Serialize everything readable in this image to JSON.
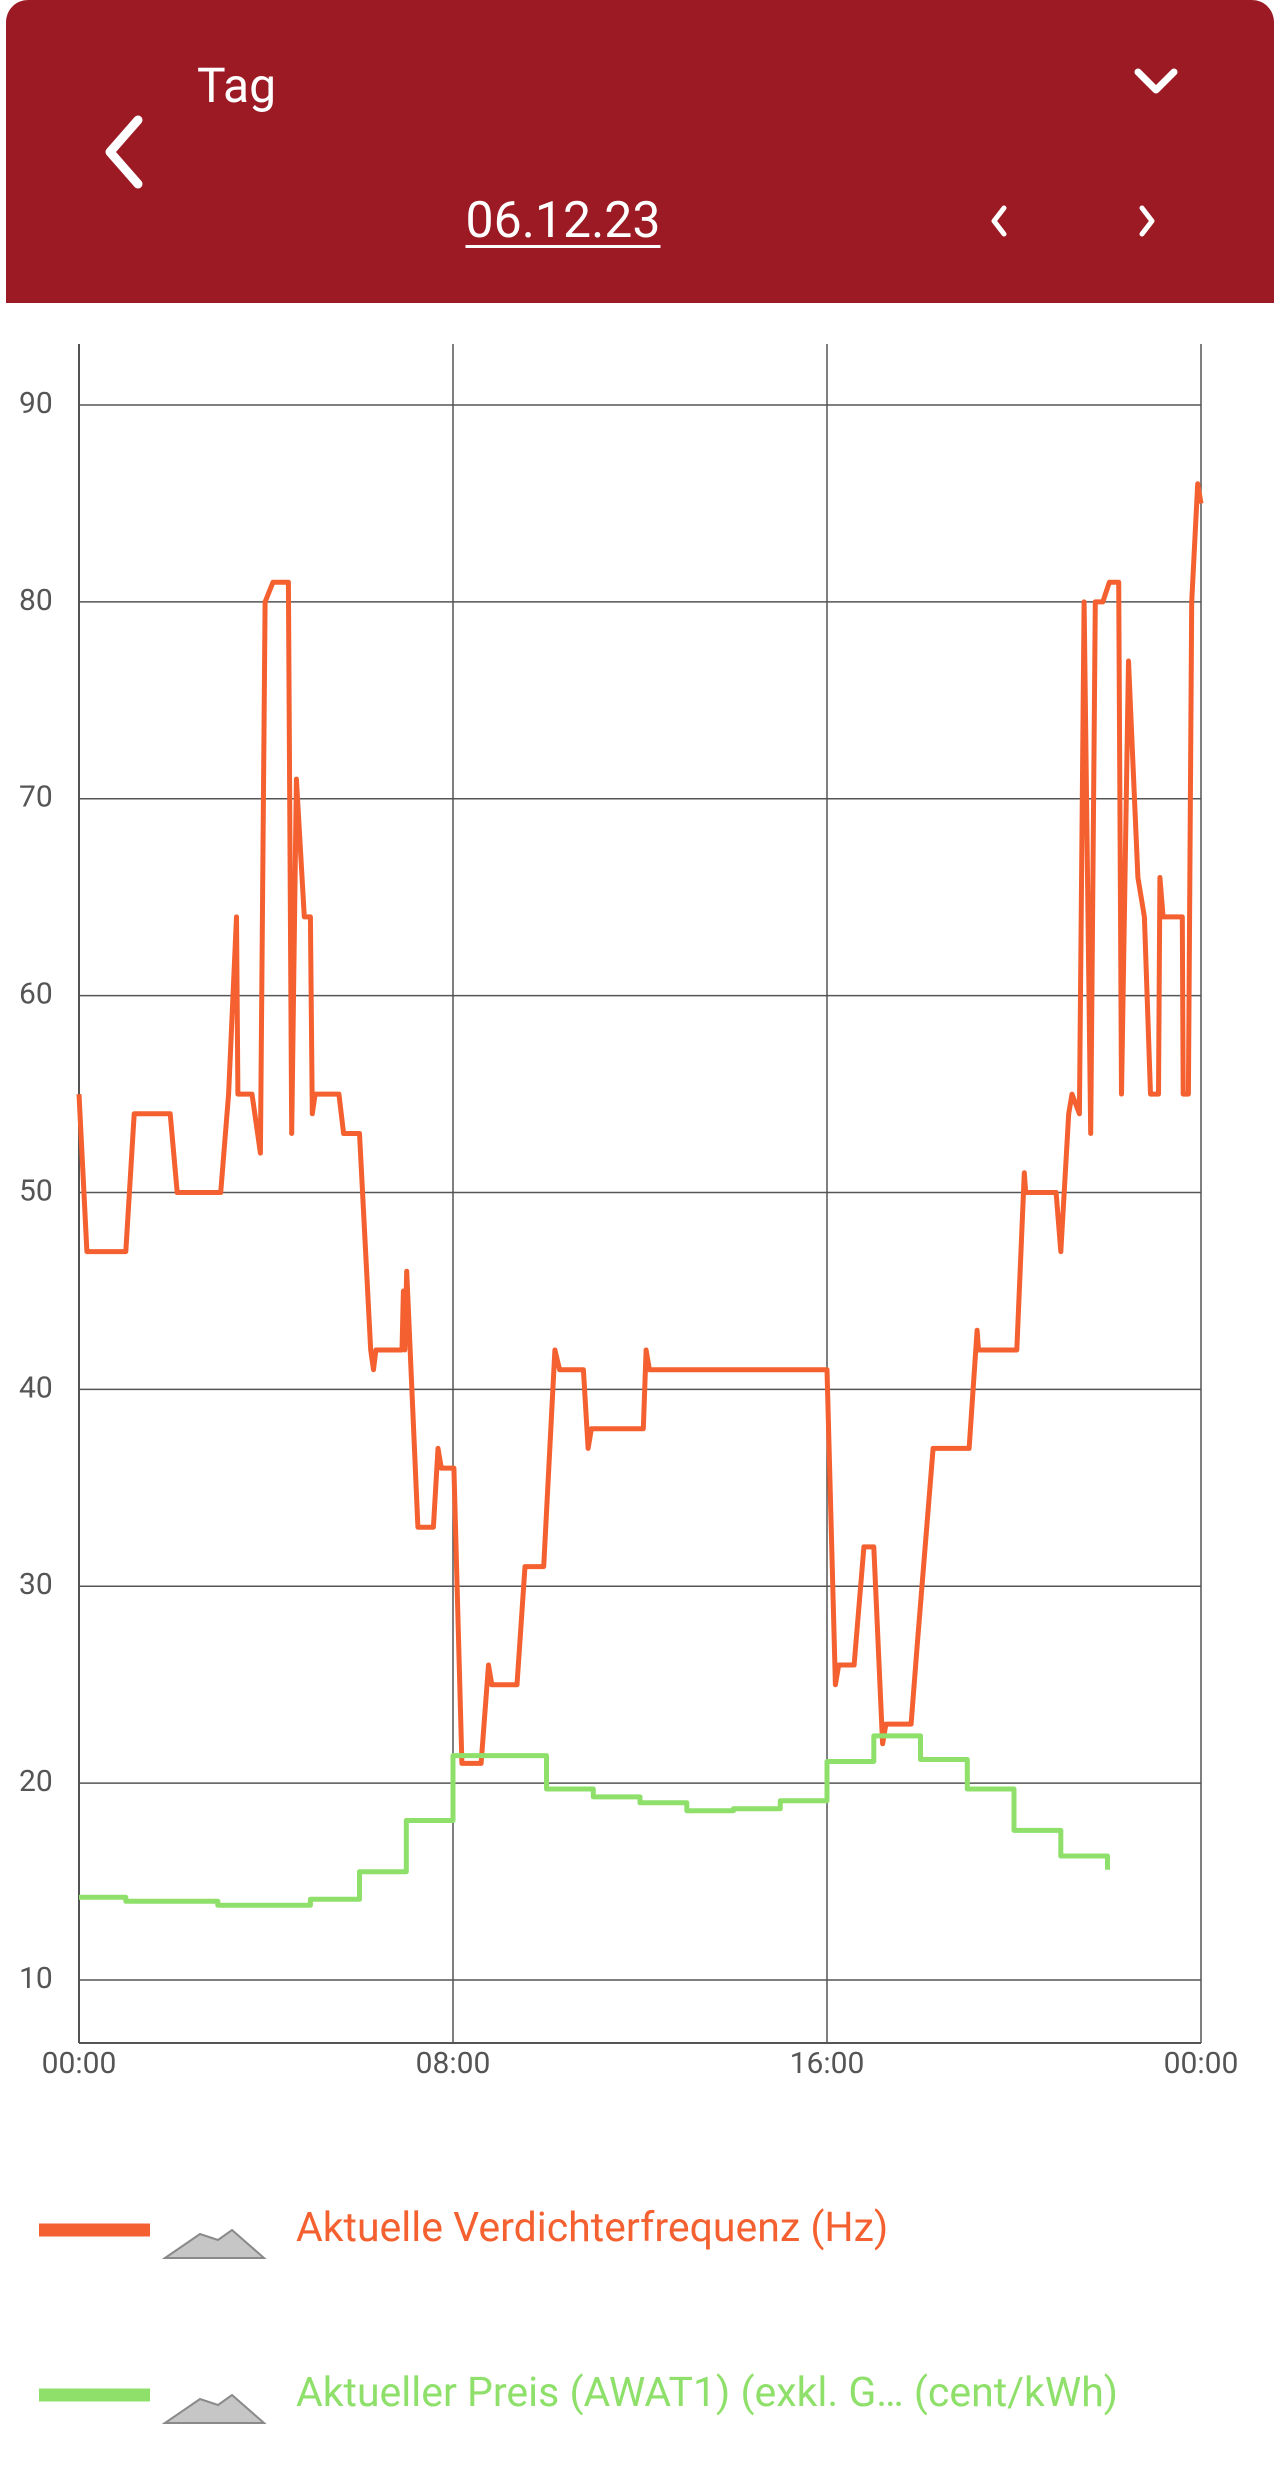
{
  "header": {
    "period": "Tag",
    "date": "06.12.23"
  },
  "chart_data": {
    "type": "line",
    "xlim": [
      0,
      24
    ],
    "xticks": [
      {
        "value": 0,
        "label": "00:00"
      },
      {
        "value": 8,
        "label": "08:00"
      },
      {
        "value": 16,
        "label": "16:00"
      },
      {
        "value": 24,
        "label": "00:00"
      }
    ],
    "ylim": [
      6.8,
      93.1
    ],
    "yticks": [
      10,
      20,
      30,
      40,
      50,
      60,
      70,
      80,
      90
    ],
    "grid": true,
    "series": [
      {
        "name": "Aktuelle Verdichterfrequenz (Hz)",
        "color": "#f4602f",
        "x": [
          0,
          0.17,
          1.0,
          1.18,
          1.95,
          2.1,
          3.03,
          3.2,
          3.37,
          3.4,
          3.7,
          3.88,
          3.98,
          4.15,
          4.48,
          4.55,
          4.65,
          4.82,
          4.95,
          4.99,
          5.05,
          5.56,
          5.66,
          6.0,
          6.24,
          6.3,
          6.35,
          6.91,
          6.94,
          6.97,
          7.01,
          7.25,
          7.58,
          7.68,
          7.75,
          8.02,
          8.19,
          8.6,
          8.76,
          8.83,
          9.37,
          9.54,
          9.94,
          10.18,
          10.28,
          10.79,
          10.89,
          10.96,
          12.07,
          12.13,
          12.2,
          16.0,
          16.18,
          16.25,
          16.58,
          16.79,
          17.0,
          17.19,
          17.26,
          17.8,
          17.93,
          18.27,
          19.04,
          19.21,
          19.24,
          20.06,
          20.22,
          20.25,
          20.9,
          21.0,
          21.17,
          21.24,
          21.4,
          21.5,
          21.64,
          21.74,
          21.9,
          22.04,
          22.24,
          22.3,
          22.45,
          22.65,
          22.79,
          22.92,
          23.09,
          23.12,
          23.19,
          23.6,
          23.62,
          23.73,
          23.8,
          23.93,
          24
        ],
        "values": [
          55,
          47,
          47,
          54,
          54,
          50,
          50,
          55,
          64,
          55,
          55,
          52,
          80,
          81,
          81,
          53,
          71,
          64,
          64,
          54,
          55,
          55,
          53,
          53,
          42,
          41,
          42,
          42,
          45,
          42,
          46,
          33,
          33,
          37,
          36,
          36,
          21,
          21,
          26,
          25,
          25,
          31,
          31,
          42,
          41,
          41,
          37,
          38,
          38,
          42,
          41,
          41,
          25,
          26,
          26,
          32,
          32,
          22,
          23,
          23,
          27,
          37,
          37,
          43,
          42,
          42,
          51,
          50,
          50,
          47,
          54,
          55,
          54,
          80,
          53,
          80,
          80,
          81,
          81,
          55,
          77,
          66,
          64,
          55,
          55,
          66,
          64,
          64,
          55,
          55,
          80,
          86,
          85
        ]
      },
      {
        "name": "Aktueller Preis (AWAT1) (exkl. G… (cent/kWh)",
        "color": "#8ee06a",
        "x": [
          0,
          1,
          1,
          2.97,
          2.97,
          4.95,
          4.95,
          6,
          6,
          7,
          7,
          8,
          8,
          10,
          10,
          11,
          11,
          12,
          12,
          13,
          13,
          14,
          14,
          15,
          15,
          16,
          16,
          17,
          17,
          18,
          18,
          19,
          19,
          20,
          20,
          21,
          21,
          22,
          22
        ],
        "values": [
          14.2,
          14.2,
          14.0,
          14.0,
          13.8,
          13.8,
          14.1,
          14.1,
          15.5,
          15.5,
          18.1,
          18.1,
          21.4,
          21.4,
          19.7,
          19.7,
          19.3,
          19.3,
          19.0,
          19.0,
          18.6,
          18.6,
          18.7,
          18.7,
          19.1,
          19.1,
          21.1,
          21.1,
          22.4,
          22.4,
          21.2,
          21.2,
          19.7,
          19.7,
          17.6,
          17.6,
          16.3,
          16.3,
          15.6
        ]
      }
    ]
  }
}
